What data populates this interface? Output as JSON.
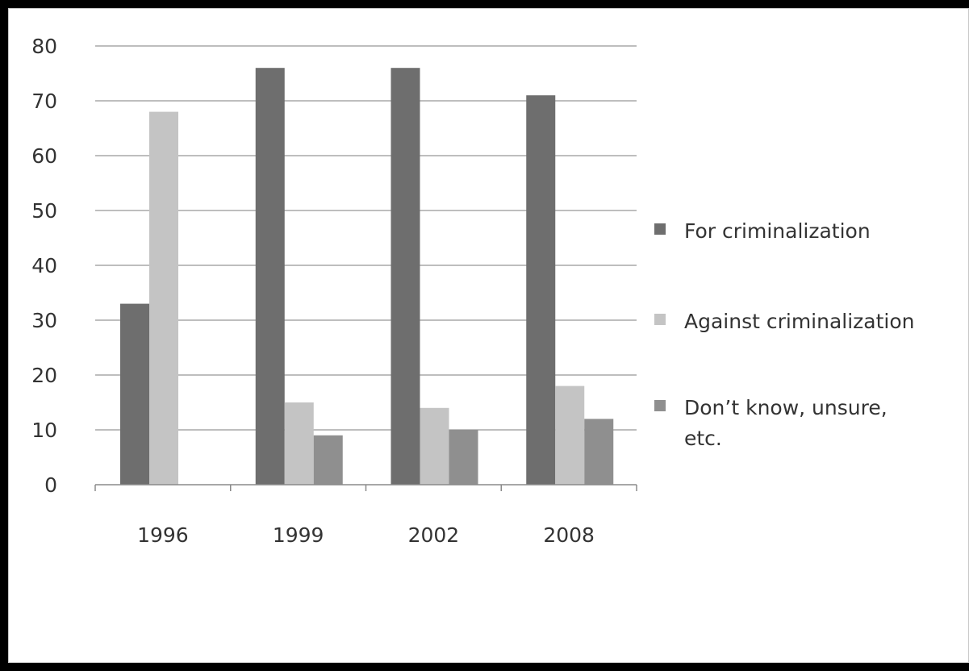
{
  "chart_data": {
    "type": "bar",
    "title": "",
    "xlabel": "",
    "ylabel": "",
    "categories": [
      "1996",
      "1999",
      "2002",
      "2008"
    ],
    "series": [
      {
        "name": "For criminalization",
        "values": [
          33,
          76,
          76,
          71
        ],
        "color": "#6e6e6e"
      },
      {
        "name": "Against criminalization",
        "values": [
          68,
          15,
          14,
          18
        ],
        "color": "#c4c4c4"
      },
      {
        "name": "Don’t know, unsure, etc.",
        "values": [
          0,
          9,
          10,
          12
        ],
        "color": "#8f8f8f"
      }
    ],
    "ylim": [
      0,
      80
    ],
    "yticks": [
      0,
      10,
      20,
      30,
      40,
      50,
      60,
      70,
      80
    ],
    "grid": true,
    "legend": "right",
    "colors": {
      "gridline": "#a8a8a8",
      "axis": "#8a8a8a",
      "text": "#333333",
      "background": "#ffffff",
      "border": "#000000"
    }
  }
}
